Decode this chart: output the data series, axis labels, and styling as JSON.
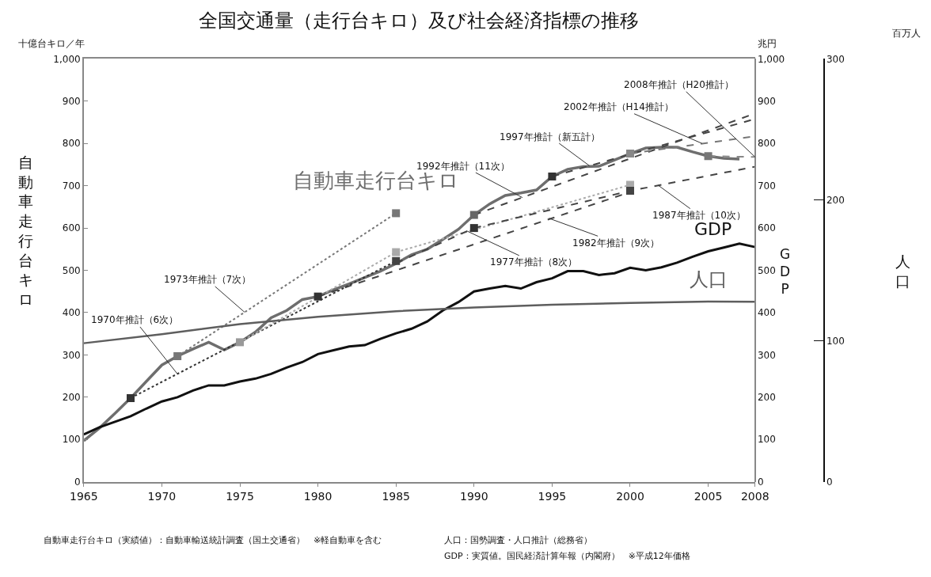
{
  "chart_data": {
    "type": "line",
    "title": "全国交通量（走行台キロ）及び社会経済指標の推移",
    "ylabel": "自動車走行台キロ",
    "y2label": "GDP",
    "y3label": "人口",
    "xlim": [
      1965,
      2008
    ],
    "xticks": [
      1965,
      1970,
      1975,
      1980,
      1985,
      1990,
      1995,
      2000,
      2005,
      2008
    ],
    "ylim": [
      0,
      1000
    ],
    "yticks": [
      0,
      100,
      200,
      300,
      400,
      500,
      600,
      700,
      800,
      900,
      {
        "value": 1000,
        "label": "1,000"
      }
    ],
    "y2lim": [
      0,
      1000
    ],
    "y2ticks": [
      0,
      100,
      200,
      300,
      400,
      500,
      600,
      700,
      800,
      900,
      {
        "value": 1000,
        "label": "1,000"
      }
    ],
    "y3lim": [
      0,
      300
    ],
    "y3ticks": [
      0,
      100,
      200,
      300
    ],
    "series": [
      {
        "name": "自動車走行台キロ",
        "color": "#6e6e6e",
        "x": [
          1965,
          1966,
          1967,
          1968,
          1969,
          1970,
          1971,
          1972,
          1973,
          1974,
          1975,
          1976,
          1977,
          1978,
          1979,
          1980,
          1981,
          1982,
          1983,
          1984,
          1985,
          1986,
          1987,
          1988,
          1989,
          1990,
          1991,
          1992,
          1993,
          1994,
          1995,
          1996,
          1997,
          1998,
          1999,
          2000,
          2001,
          2002,
          2003,
          2004,
          2005,
          2006,
          2007
        ],
        "values": [
          97,
          127,
          162,
          198,
          237,
          276,
          297,
          314,
          330,
          312,
          330,
          354,
          388,
          405,
          431,
          438,
          454,
          468,
          483,
          498,
          516,
          537,
          550,
          573,
          597,
          631,
          657,
          677,
          683,
          690,
          722,
          739,
          745,
          746,
          761,
          776,
          789,
          791,
          791,
          780,
          770,
          765,
          763
        ]
      },
      {
        "name": "GDP",
        "color": "#111111",
        "axis": "y2",
        "x": [
          1965,
          1966,
          1967,
          1968,
          1969,
          1970,
          1971,
          1972,
          1973,
          1974,
          1975,
          1976,
          1977,
          1978,
          1979,
          1980,
          1981,
          1982,
          1983,
          1984,
          1985,
          1986,
          1987,
          1988,
          1989,
          1990,
          1991,
          1992,
          1993,
          1994,
          1995,
          1996,
          1997,
          1998,
          1999,
          2000,
          2001,
          2002,
          2003,
          2004,
          2005,
          2006,
          2007,
          2008
        ],
        "values": [
          112,
          129,
          142,
          155,
          173,
          190,
          200,
          216,
          228,
          228,
          237,
          244,
          255,
          270,
          283,
          302,
          311,
          320,
          323,
          338,
          351,
          362,
          379,
          405,
          425,
          450,
          457,
          463,
          457,
          472,
          481,
          498,
          498,
          489,
          493,
          506,
          500,
          507,
          518,
          532,
          545,
          554,
          563,
          555
        ]
      },
      {
        "name": "人口",
        "color": "#5e5e5e",
        "axis": "y3",
        "x": [
          1965,
          1970,
          1975,
          1980,
          1985,
          1990,
          1995,
          2000,
          2005,
          2008
        ],
        "values": [
          98.3,
          104.7,
          111.9,
          117.1,
          121.0,
          123.6,
          125.6,
          126.9,
          127.8,
          127.7
        ]
      },
      {
        "type": "line",
        "color": "#333333",
        "line_style": "dotted",
        "x": [
          1968,
          1985
        ],
        "values": [
          198,
          522
        ]
      },
      {
        "type": "line",
        "color": "#777777",
        "line_style": "dotted",
        "x": [
          1971,
          1985
        ],
        "values": [
          297,
          635
        ]
      },
      {
        "type": "line",
        "color": "#aaaaaa",
        "line_style": "dotted",
        "x": [
          1975,
          1985,
          2000
        ],
        "values": [
          330,
          543,
          702
        ]
      },
      {
        "type": "line",
        "color": "#444444",
        "line_style": "dashed",
        "x": [
          1980,
          2000
        ],
        "values": [
          438,
          685
        ]
      },
      {
        "type": "line",
        "color": "#444444",
        "line_style": "dashed",
        "x": [
          1985,
          1990,
          2000,
          2008
        ],
        "values": [
          517,
          600,
          688,
          745
        ]
      },
      {
        "type": "line",
        "color": "#444444",
        "line_style": "dashed",
        "x": [
          1990,
          2008
        ],
        "values": [
          631,
          871
        ]
      },
      {
        "type": "line",
        "color": "#444444",
        "line_style": "dashed",
        "x": [
          1995,
          2008
        ],
        "values": [
          722,
          858
        ]
      },
      {
        "type": "line",
        "color": "#777777",
        "line_style": "dashed",
        "x": [
          2000,
          2008
        ],
        "values": [
          776,
          817
        ]
      },
      {
        "type": "line",
        "color": "#888888",
        "line_style": "dashed",
        "x": [
          2005,
          2008
        ],
        "values": [
          770,
          768
        ]
      },
      {
        "type": "scatter",
        "marker": "square",
        "x": [
          1968,
          1971,
          1975,
          1980,
          1985,
          1985,
          1985,
          1990,
          1990,
          1995,
          2000,
          2000,
          2000,
          2005
        ],
        "values": [
          198,
          297,
          330,
          438,
          635,
          543,
          522,
          631,
          600,
          722,
          776,
          702,
          688,
          770
        ],
        "colors": [
          "#333333",
          "#777777",
          "#999999",
          "#333333",
          "#777777",
          "#aaaaaa",
          "#444444",
          "#666666",
          "#333333",
          "#333333",
          "#888888",
          "#aaaaaa",
          "#444444",
          "#777777"
        ]
      }
    ],
    "annotations": [
      "十億台キロ／年",
      "兆円",
      "百万人",
      "自動車走行台キロ（実績値）：自動車輸送統計調査（国土交通省）　※軽自動車を含む",
      "人口：国勢調査・人口推計（総務省）",
      "GDP：実質値。国民経済計算年報（内閣府）　※平成12年価格",
      {
        "text": "1970年推計（6次）",
        "x": 1971,
        "y": 255
      },
      {
        "text": "1973年推計（7次）",
        "x": 1975.3,
        "y": 401
      },
      {
        "text": "1977年推計（8次）",
        "x": 1989.6,
        "y": 592
      },
      {
        "text": "1982年推計（9次）",
        "x": 1994.8,
        "y": 623
      },
      {
        "text": "1987年推計（10次）",
        "x": 2001.8,
        "y": 701
      },
      {
        "text": "1992年推計（11次）",
        "x": 1993.1,
        "y": 672
      },
      {
        "text": "1997年推計（新五計）",
        "x": 1997.4,
        "y": 747
      },
      {
        "text": "2002年推計（H14推計）",
        "x": 2004.6,
        "y": 800
      },
      {
        "text": "2008年推計（H20推計）",
        "x": 2008,
        "y": 768
      }
    ]
  }
}
